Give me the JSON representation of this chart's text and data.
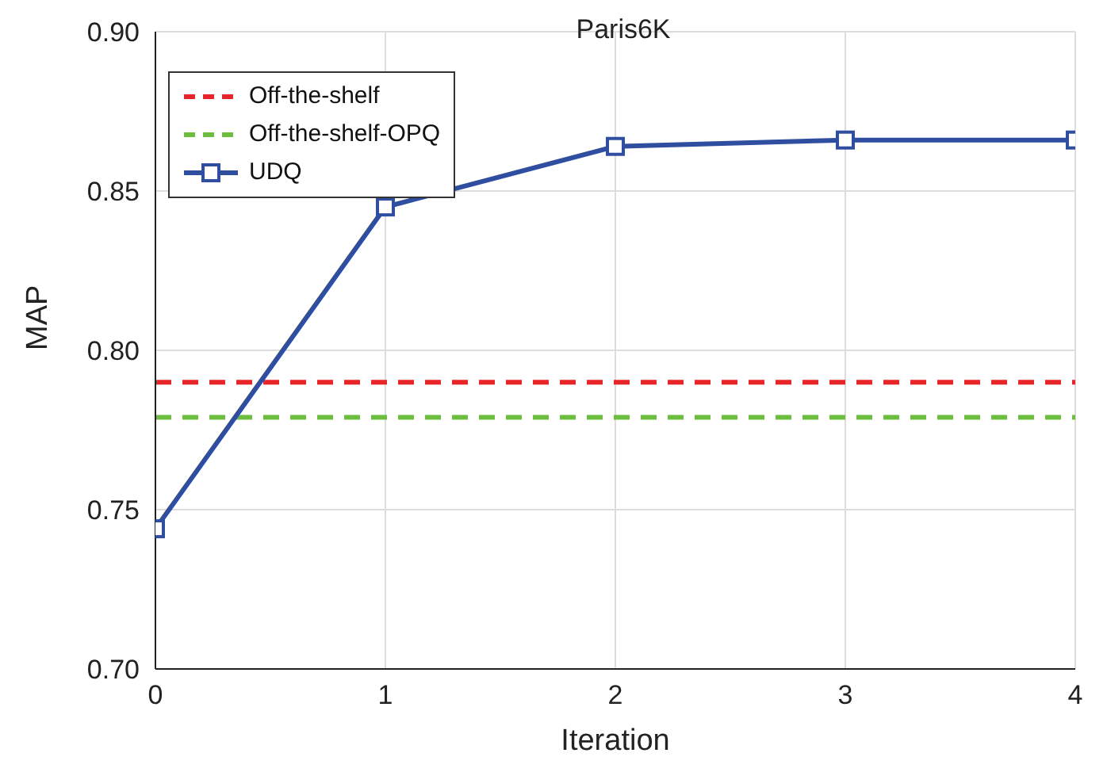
{
  "chart_data": {
    "type": "line",
    "title": "Paris6K",
    "xlabel": "Iteration",
    "ylabel": "MAP",
    "xlim": [
      0,
      4
    ],
    "xticks": [
      0,
      1,
      2,
      3,
      4
    ],
    "ylim": [
      0.7,
      0.9
    ],
    "yticks": [
      {
        "value": 0.7,
        "label": "0.70"
      },
      0.75,
      {
        "value": 0.8,
        "label": "0.80"
      },
      0.85,
      {
        "value": 0.9,
        "label": "0.90"
      }
    ],
    "grid": true,
    "legend": "top left",
    "series": [
      {
        "name": "Off-the-shelf",
        "color": "#e8262a",
        "x": [
          0,
          4
        ],
        "values": [
          0.79,
          0.79
        ],
        "line_style": "dashed",
        "marker": "none"
      },
      {
        "name": "Off-the-shelf-OPQ",
        "color": "#6cbf3e",
        "x": [
          0,
          4
        ],
        "values": [
          0.779,
          0.779
        ],
        "line_style": "dashed",
        "marker": "none"
      },
      {
        "name": "UDQ",
        "color": "#2f4ea0",
        "x": [
          0,
          1,
          2,
          3,
          4
        ],
        "values": [
          0.744,
          0.845,
          0.864,
          0.866,
          0.866
        ],
        "line_style": "solid",
        "marker": "square"
      }
    ]
  }
}
